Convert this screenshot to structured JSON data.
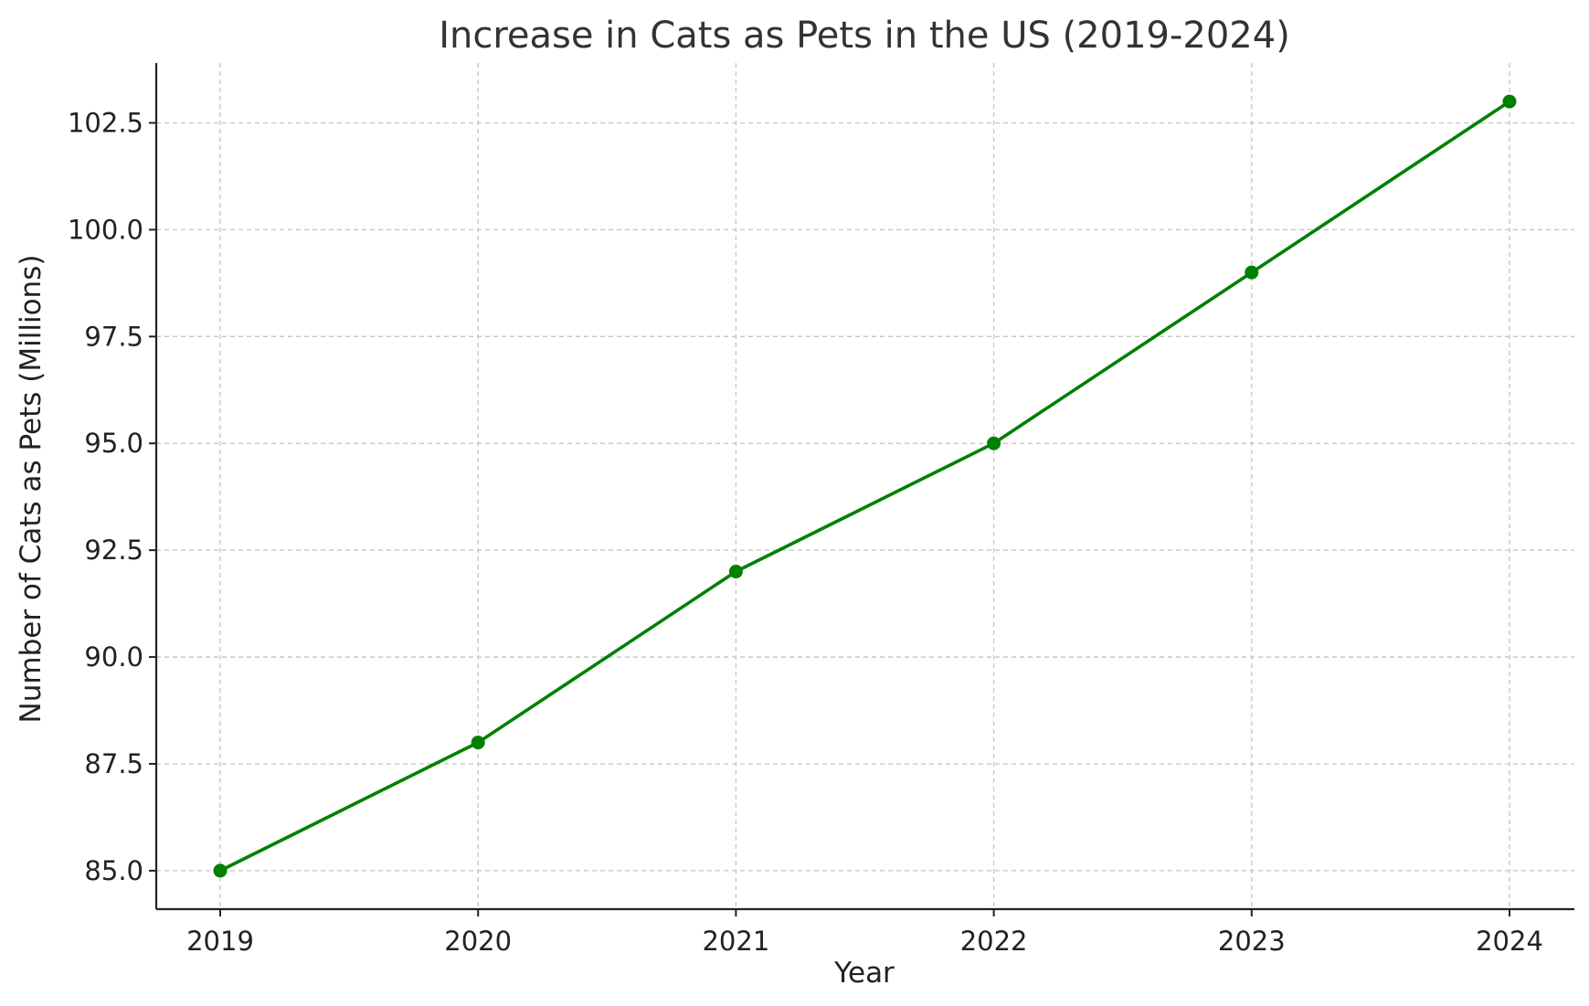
{
  "chart_data": {
    "type": "line",
    "title": "Increase in Cats as Pets in the US (2019-2024)",
    "xlabel": "Year",
    "ylabel": "Number of Cats as Pets (Millions)",
    "categories": [
      "2019",
      "2020",
      "2021",
      "2022",
      "2023",
      "2024"
    ],
    "series": [
      {
        "values": [
          85,
          88,
          92,
          95,
          99,
          103
        ],
        "color": "#008000",
        "marker": "circle"
      }
    ],
    "y_ticks": [
      85.0,
      87.5,
      90.0,
      92.5,
      95.0,
      97.5,
      100.0,
      102.5
    ],
    "y_tick_labels": [
      "85.0",
      "87.5",
      "90.0",
      "92.5",
      "95.0",
      "97.5",
      "100.0",
      "102.5"
    ],
    "ylim": [
      84.1,
      103.9
    ],
    "grid": true,
    "grid_style": "dashed"
  }
}
